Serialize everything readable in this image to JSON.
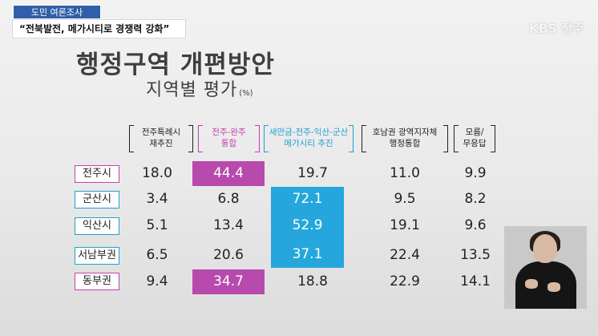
{
  "tag": "도민 여론조사",
  "subtitle": "“전북발전, 메가시티로 경쟁력 강화”",
  "logo": "KBS 전주",
  "title": "행정구역 개편방안",
  "title2": "지역별 평가",
  "unit": "(%)",
  "colors": {
    "pink": "#b94aad",
    "blue": "#25a7dd"
  },
  "columns": [
    {
      "line1": "전주특례시",
      "line2": "재추진"
    },
    {
      "line1": "전주-완주",
      "line2": "통합"
    },
    {
      "line1": "새만금-전주-익산-군산",
      "line2": "메가시티 추진"
    },
    {
      "line1": "호남권 광역지자체",
      "line2": "행정통합"
    },
    {
      "line1": "모름/",
      "line2": "무응답"
    }
  ],
  "rows": [
    {
      "label": "전주시",
      "values": [
        "18.0",
        "44.4",
        "19.7",
        "11.0",
        "9.9"
      ]
    },
    {
      "label": "군산시",
      "values": [
        "3.4",
        "6.8",
        "72.1",
        "9.5",
        "8.2"
      ]
    },
    {
      "label": "익산시",
      "values": [
        "5.1",
        "13.4",
        "52.9",
        "19.1",
        "9.6"
      ]
    },
    {
      "label": "서남부권",
      "values": [
        "6.5",
        "20.6",
        "37.1",
        "22.4",
        "13.5"
      ]
    },
    {
      "label": "동부권",
      "values": [
        "9.4",
        "34.7",
        "18.8",
        "22.9",
        "14.1"
      ]
    }
  ]
}
